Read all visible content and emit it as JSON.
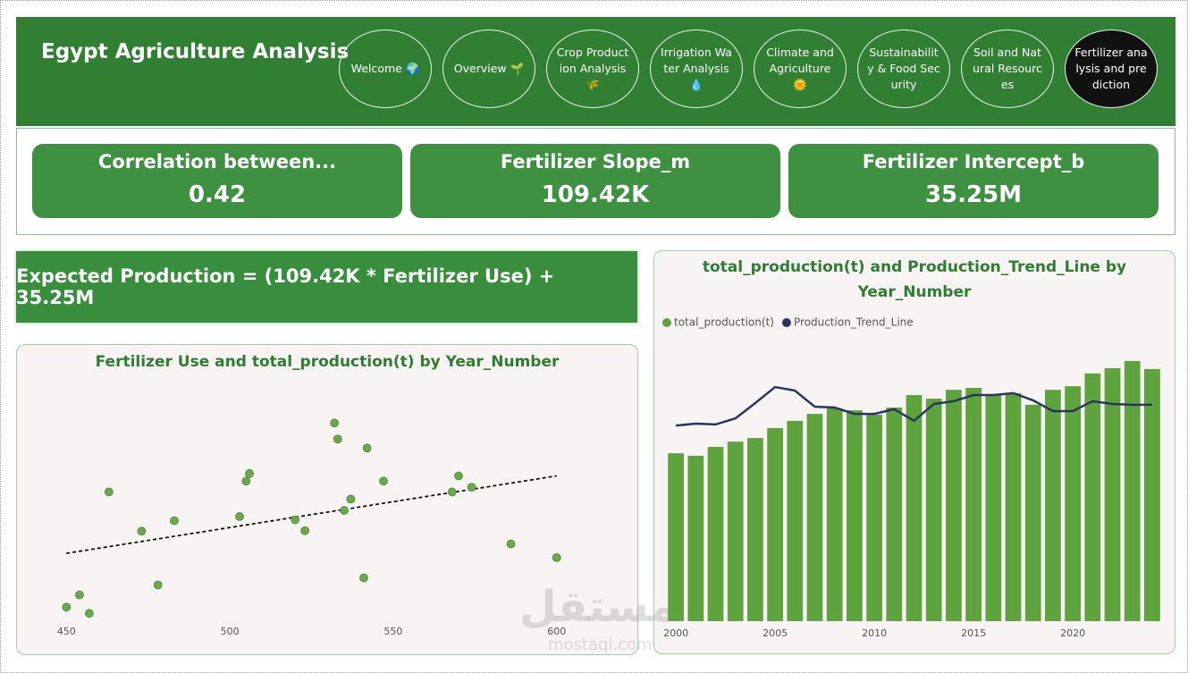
{
  "header": {
    "title": "Egypt Agriculture Analysis"
  },
  "nav": [
    {
      "label": "Welcome 🌍",
      "active": false
    },
    {
      "label": "Overview 🌱",
      "active": false
    },
    {
      "label": "Crop Production Analysis 🌾",
      "active": false
    },
    {
      "label": "Irrigation Water Analysis💧",
      "active": false
    },
    {
      "label": "Climate and Agriculture 🌞",
      "active": false
    },
    {
      "label": "Sustainability & Food Security",
      "active": false
    },
    {
      "label": "Soil and Natural Resources",
      "active": false
    },
    {
      "label": "Fertilizer analysis and prediction",
      "active": true
    }
  ],
  "kpis": [
    {
      "title": "Correlation between...",
      "value": "0.42"
    },
    {
      "title": "Fertilizer Slope_m",
      "value": "109.42K"
    },
    {
      "title": "Fertilizer Intercept_b",
      "value": "35.25M"
    }
  ],
  "formula": "Expected Production = (109.42K * Fertilizer Use) + 35.25M",
  "watermark": {
    "arabic": "مستقل",
    "latin": "mostaql.com"
  },
  "chart_data": [
    {
      "type": "scatter",
      "title": "Fertilizer Use and total_production(t) by Year_Number",
      "x": [
        450,
        454,
        457,
        463,
        473,
        478,
        483,
        503,
        505,
        506,
        520,
        523,
        532,
        533,
        535,
        537,
        541,
        542,
        547,
        568,
        570,
        574,
        586,
        600
      ],
      "values": [
        73.1,
        75.7,
        71.8,
        97.5,
        89.2,
        77.8,
        91.4,
        92.3,
        99.8,
        101.4,
        91.6,
        89.3,
        112.1,
        108.7,
        93.6,
        96.0,
        79.3,
        106.8,
        99.8,
        97.5,
        100.9,
        98.5,
        86.5,
        83.6
      ],
      "color": "#6aa84f",
      "trend_line": {
        "x": [
          450,
          600
        ],
        "values": [
          84.5,
          100.9
        ],
        "color": "#111111"
      },
      "xlim": [
        445,
        605
      ],
      "xticks": [
        450,
        500,
        550,
        600
      ],
      "ylim": [
        69,
        122
      ]
    },
    {
      "type": "bar",
      "title": "total_production(t) and Production_Trend_Line by Year_Number",
      "x": [
        2000,
        2001,
        2002,
        2003,
        2004,
        2005,
        2006,
        2007,
        2008,
        2009,
        2010,
        2011,
        2012,
        2013,
        2014,
        2015,
        2016,
        2017,
        2018,
        2019,
        2020,
        2021,
        2022,
        2023,
        2024
      ],
      "series": [
        {
          "name": "total_production(t)",
          "type": "bar",
          "color": "#5ea33d",
          "values": [
            60.6,
            59.7,
            62.9,
            64.8,
            66.1,
            69.7,
            72.3,
            74.8,
            76.8,
            76.1,
            74.5,
            77.1,
            81.6,
            80.3,
            83.5,
            84.2,
            81.6,
            82.3,
            78.1,
            83.5,
            84.8,
            89.4,
            91.3,
            93.9,
            91.0
          ]
        },
        {
          "name": "Production_Trend_Line",
          "type": "line",
          "color": "#2c3560",
          "values": [
            70.6,
            71.3,
            71.0,
            73.2,
            78.7,
            84.5,
            83.2,
            77.4,
            77.1,
            74.8,
            74.8,
            76.5,
            72.3,
            78.4,
            79.4,
            81.6,
            81.6,
            82.3,
            79.7,
            75.8,
            75.8,
            79.4,
            78.4,
            78.1,
            78.1
          ]
        }
      ],
      "xlim": [
        1999.5,
        2024.5
      ],
      "xticks": [
        2000,
        2005,
        2010,
        2015,
        2020
      ],
      "ylim": [
        0,
        100
      ],
      "legend": "top-left"
    }
  ]
}
